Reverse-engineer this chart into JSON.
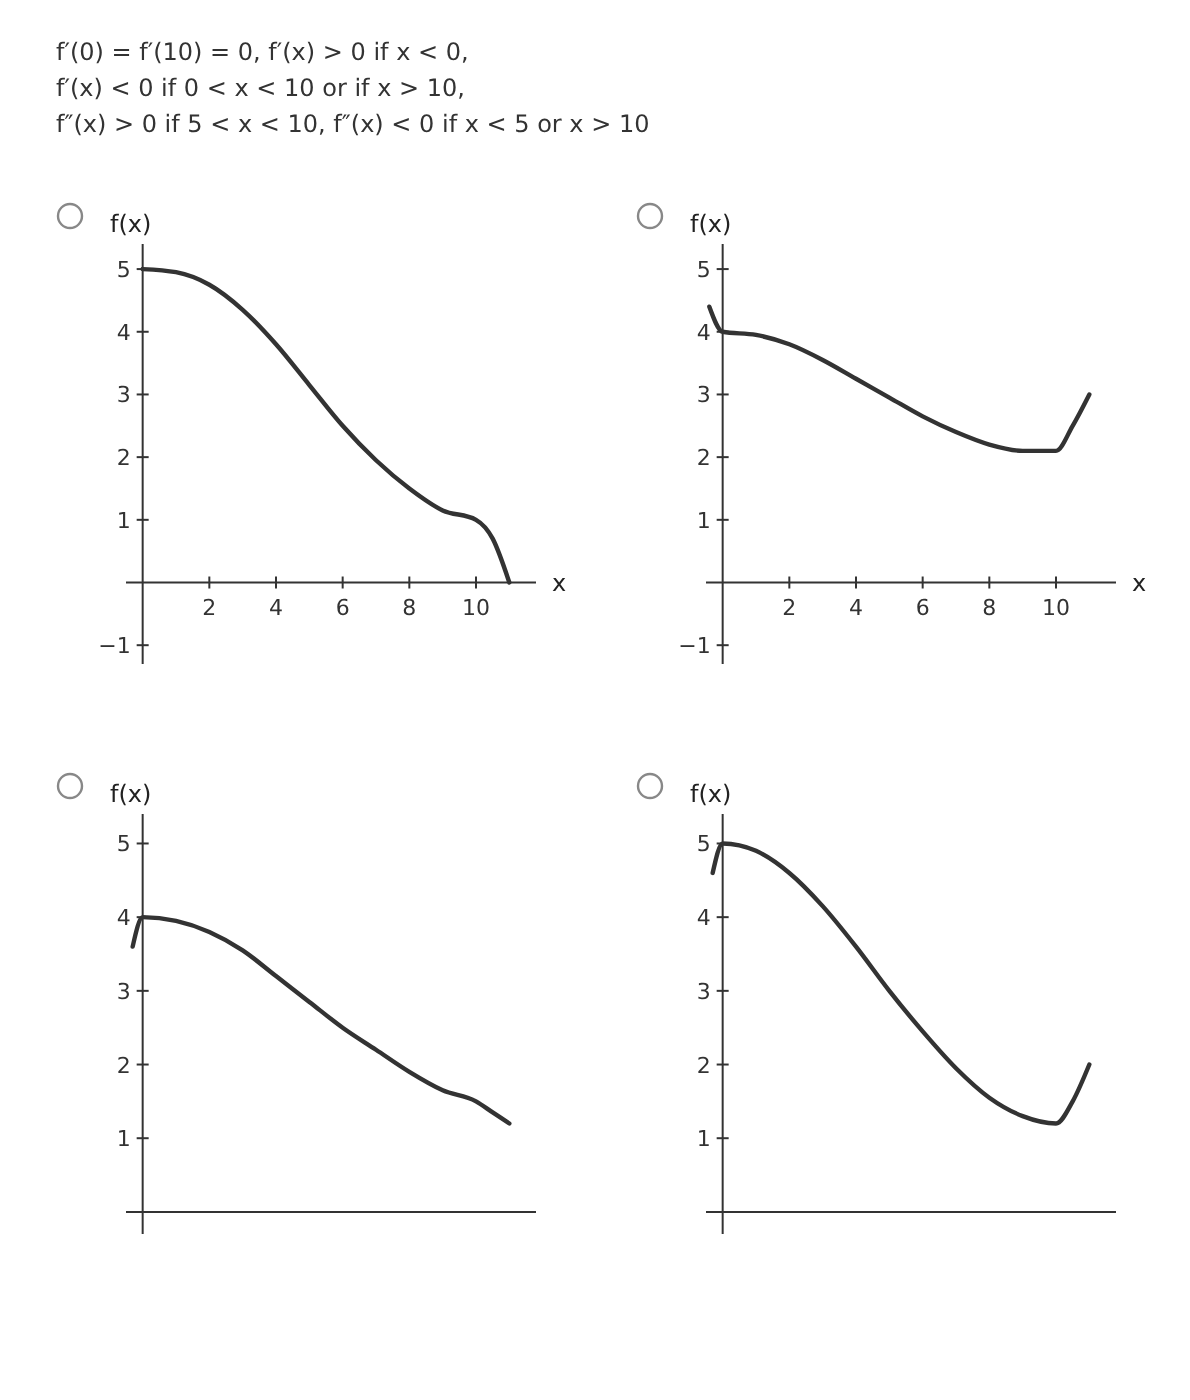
{
  "chart_data": [
    {
      "type": "line",
      "annotations": [
        "f′(0) = f′(10) = 0,   f′(x) > 0 if x < 0,",
        "f′(x) < 0 if 0 < x < 10 or if x > 10,",
        "f″(x) > 0 if 5 < x < 10,   f″(x) < 0 if x < 5 or x > 10"
      ],
      "xlabel": "x",
      "ylabel": "f(x)",
      "xlim": [
        -0.5,
        11.8
      ],
      "ylim": [
        -1.3,
        5.4
      ],
      "xticks": [
        2,
        4,
        6,
        8,
        10
      ],
      "yticks": [
        -1,
        1,
        2,
        3,
        4,
        5
      ],
      "series": [
        {
          "color": "#333333",
          "x": [
            0,
            1,
            2,
            3,
            4,
            5,
            6,
            7,
            8,
            9,
            10,
            10.5,
            11
          ],
          "values": [
            5,
            4.95,
            4.75,
            4.35,
            3.8,
            3.15,
            2.5,
            1.95,
            1.5,
            1.15,
            1.0,
            0.7,
            0
          ]
        }
      ]
    },
    {
      "type": "line",
      "xlabel": "x",
      "ylabel": "f(x)",
      "xlim": [
        -0.5,
        11.8
      ],
      "ylim": [
        -1.3,
        5.4
      ],
      "xticks": [
        2,
        4,
        6,
        8,
        10
      ],
      "yticks": [
        -1,
        1,
        2,
        3,
        4,
        5
      ],
      "series": [
        {
          "color": "#333333",
          "x": [
            -0.4,
            0,
            1,
            2,
            3,
            4,
            5,
            6,
            7,
            8,
            9,
            10,
            10.5,
            11
          ],
          "values": [
            4.4,
            4,
            3.95,
            3.8,
            3.55,
            3.25,
            2.95,
            2.65,
            2.4,
            2.2,
            2.1,
            2.1,
            2.5,
            3.0
          ]
        }
      ]
    },
    {
      "type": "line",
      "ylabel": "f(x)",
      "xlim": [
        -0.5,
        11.8
      ],
      "ylim": [
        -0.3,
        5.4
      ],
      "yticks": [
        1,
        2,
        3,
        4,
        5
      ],
      "tick_labels": "y",
      "series": [
        {
          "color": "#333333",
          "x": [
            -0.3,
            0,
            1,
            2,
            3,
            4,
            5,
            6,
            7,
            8,
            9,
            10,
            10.5,
            11
          ],
          "values": [
            3.6,
            4,
            3.95,
            3.8,
            3.55,
            3.2,
            2.85,
            2.5,
            2.2,
            1.9,
            1.65,
            1.5,
            1.35,
            1.2
          ]
        }
      ]
    },
    {
      "type": "line",
      "ylabel": "f(x)",
      "xlim": [
        -0.5,
        11.8
      ],
      "ylim": [
        -0.3,
        5.4
      ],
      "yticks": [
        1,
        2,
        3,
        4,
        5
      ],
      "tick_labels": "y",
      "series": [
        {
          "color": "#333333",
          "x": [
            -0.3,
            0,
            1,
            2,
            3,
            4,
            5,
            6,
            7,
            8,
            9,
            10,
            10.5,
            11
          ],
          "values": [
            4.6,
            5,
            4.9,
            4.6,
            4.15,
            3.6,
            3.0,
            2.45,
            1.95,
            1.55,
            1.3,
            1.2,
            1.5,
            2.0
          ]
        }
      ]
    }
  ]
}
